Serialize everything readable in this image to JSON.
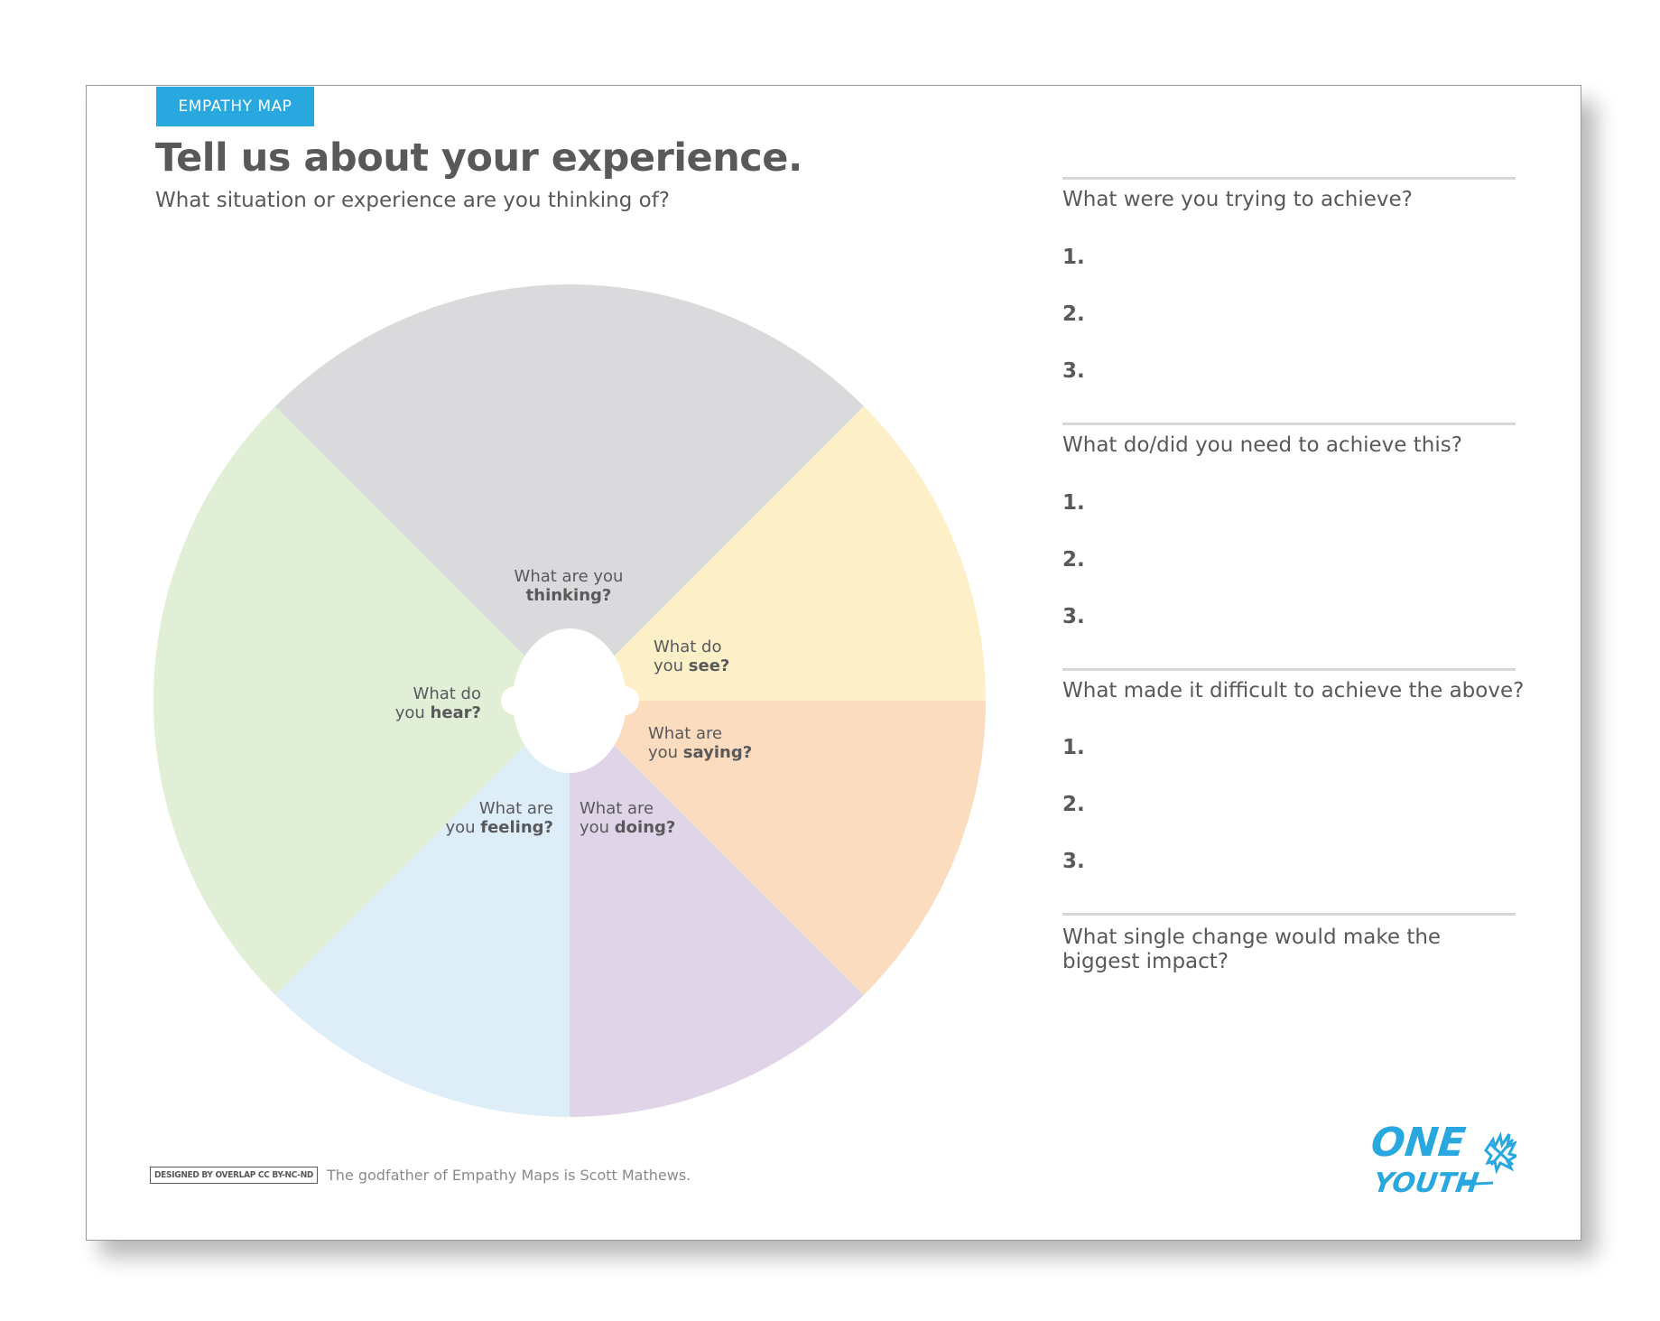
{
  "header": {
    "tag": "EMPATHY MAP",
    "title": "Tell us about your experience.",
    "subtitle": "What situation or experience are you thinking of?"
  },
  "wheel": {
    "colors": {
      "thinking": "#dadadc",
      "see": "#fdf0c9",
      "saying": "#fcdcbf",
      "doing": "#e0d4e8",
      "feeling": "#deeef9",
      "hear": "#e2efd7"
    },
    "segments": {
      "thinking": {
        "line1": "What are you",
        "bold": "thinking?"
      },
      "see": {
        "line1": "What do",
        "line2": "you ",
        "bold": "see?"
      },
      "saying": {
        "line1": "What are",
        "line2": "you ",
        "bold": "saying?"
      },
      "doing": {
        "line1": "What are",
        "line2": "you ",
        "bold": "doing?"
      },
      "feeling": {
        "line1": "What are",
        "line2": "you ",
        "bold": "feeling?"
      },
      "hear": {
        "line1": "What do",
        "line2": "you ",
        "bold": "hear?"
      }
    }
  },
  "questions": [
    {
      "text": "What were you trying to achieve?",
      "items": [
        "1.",
        "2.",
        "3."
      ]
    },
    {
      "text": "What do/did you need to achieve this?",
      "items": [
        "1.",
        "2.",
        "3."
      ]
    },
    {
      "text": "What made it difficult to achieve the above?",
      "items": [
        "1.",
        "2.",
        "3."
      ]
    },
    {
      "text": "What single change would make the biggest impact?",
      "items": []
    }
  ],
  "footer": {
    "credit": "DESIGNED BY OVERLAP CC BY-NC-ND",
    "note": "The godfather of Empathy Maps is Scott Mathews.",
    "logo_line1": "ONE",
    "logo_line2": "YOUTH",
    "logo_color": "#29a8e0"
  }
}
